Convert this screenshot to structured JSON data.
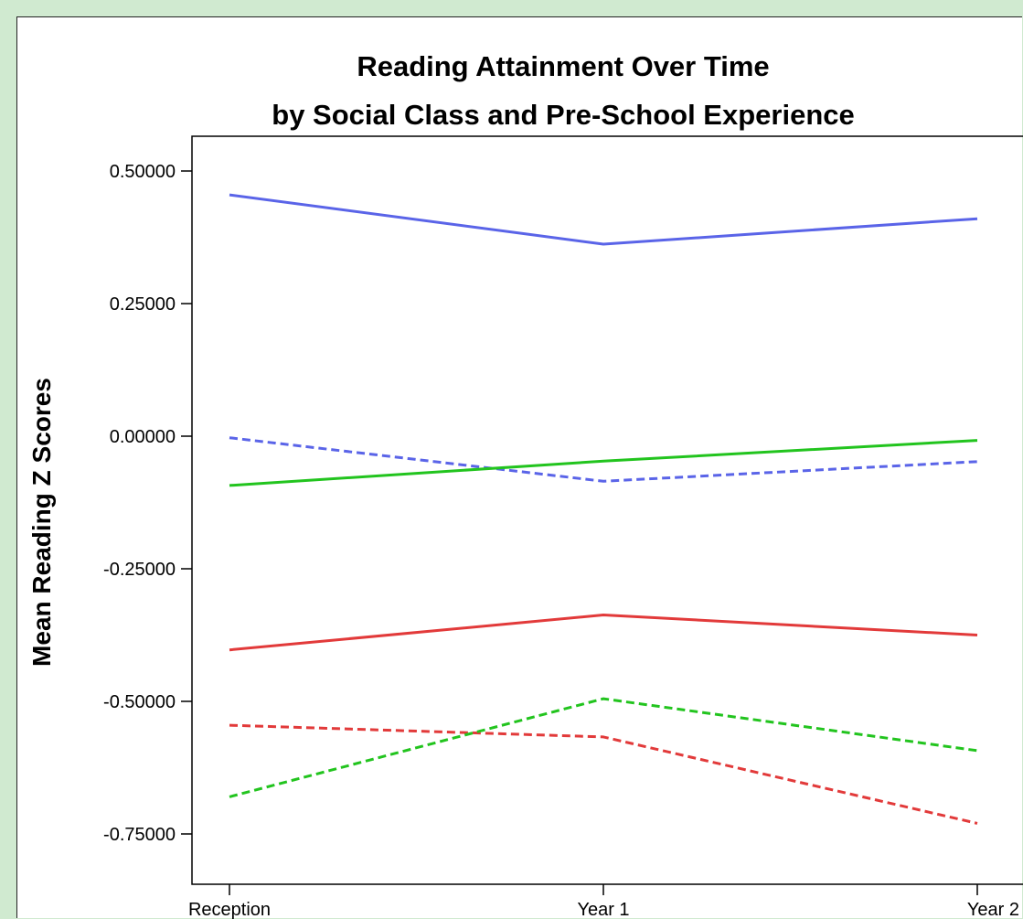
{
  "chart_data": {
    "type": "line",
    "title": "Reading Attainment Over Time",
    "subtitle": "by Social Class and Pre-School Experience",
    "xlabel": "",
    "ylabel": "Mean Reading Z Scores",
    "categories": [
      "Reception",
      "Year 1",
      "Year 2"
    ],
    "y_ticks": [
      0.5,
      0.25,
      0.0,
      -0.25,
      -0.5,
      -0.75
    ],
    "y_tick_labels": [
      "0.50000",
      "0.25000",
      "0.00000",
      "-0.25000",
      "-0.50000",
      "-0.75000"
    ],
    "ylim": [
      -0.82,
      0.57
    ],
    "grid": false,
    "legend": "none",
    "series": [
      {
        "values": [
          0.455,
          0.362,
          0.41
        ],
        "color": "#5a64e8",
        "style": "solid"
      },
      {
        "values": [
          -0.003,
          -0.085,
          -0.048
        ],
        "color": "#5a64e8",
        "style": "dashed"
      },
      {
        "values": [
          -0.093,
          -0.047,
          -0.008
        ],
        "color": "#22c41e",
        "style": "solid"
      },
      {
        "values": [
          -0.403,
          -0.337,
          -0.375
        ],
        "color": "#e23a3a",
        "style": "solid"
      },
      {
        "values": [
          -0.545,
          -0.567,
          -0.73
        ],
        "color": "#e23a3a",
        "style": "dashed"
      },
      {
        "values": [
          -0.68,
          -0.495,
          -0.593
        ],
        "color": "#22c41e",
        "style": "dashed"
      }
    ]
  }
}
